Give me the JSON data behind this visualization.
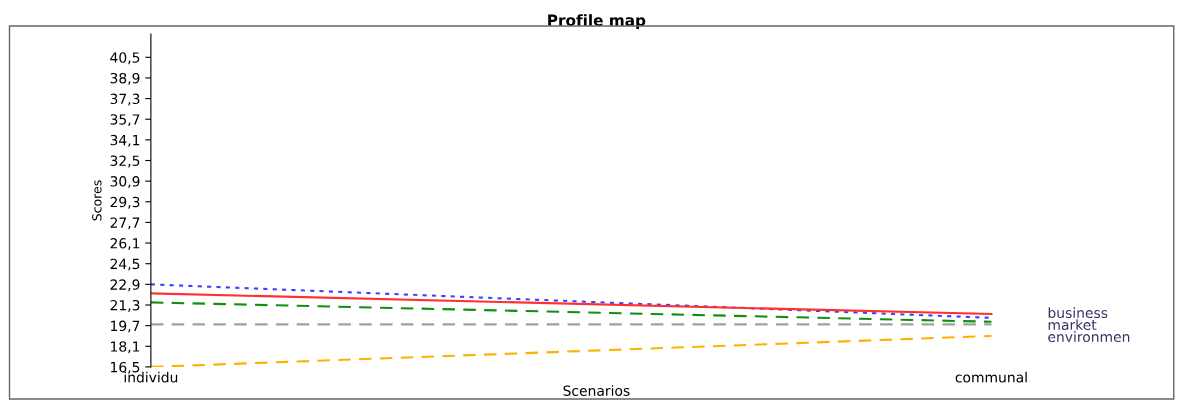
{
  "chart_data": {
    "type": "line",
    "title": "Profile map",
    "xlabel": "Scenarios",
    "ylabel": "Scores",
    "categories": [
      "individu",
      "communal"
    ],
    "series": [
      {
        "color": "#4040ff",
        "values": [
          22.9,
          20.3
        ],
        "line_style": "dotted"
      },
      {
        "name": "business",
        "color": "#ff3030",
        "values": [
          22.2,
          20.6
        ],
        "line_style": "solid"
      },
      {
        "color": "#109010",
        "values": [
          21.5,
          20.0
        ],
        "line_style": "dashed"
      },
      {
        "name": "market",
        "color": "#a0a0a0",
        "values": [
          19.8,
          19.8
        ],
        "line_style": "dashed"
      },
      {
        "name": "environmen",
        "color": "#ffb000",
        "values": [
          16.5,
          18.9
        ],
        "line_style": "dashed"
      }
    ],
    "ylim": [
      16.5,
      42.3
    ],
    "yticks": [
      {
        "value": 16.5,
        "label": "16,5"
      },
      {
        "value": 18.1,
        "label": "18,1"
      },
      {
        "value": 19.7,
        "label": "19,7"
      },
      {
        "value": 21.3,
        "label": "21,3"
      },
      {
        "value": 22.9,
        "label": "22,9"
      },
      {
        "value": 24.5,
        "label": "24,5"
      },
      {
        "value": 26.1,
        "label": "26,1"
      },
      {
        "value": 27.7,
        "label": "27,7"
      },
      {
        "value": 29.3,
        "label": "29,3"
      },
      {
        "value": 30.9,
        "label": "30,9"
      },
      {
        "value": 32.5,
        "label": "32,5"
      },
      {
        "value": 34.1,
        "label": "34,1"
      },
      {
        "value": 35.7,
        "label": "35,7"
      },
      {
        "value": 37.3,
        "label": "37,3"
      },
      {
        "value": 38.9,
        "label": "38,9"
      },
      {
        "value": 40.5,
        "label": "40,5"
      }
    ],
    "grid": false,
    "legend": false
  }
}
